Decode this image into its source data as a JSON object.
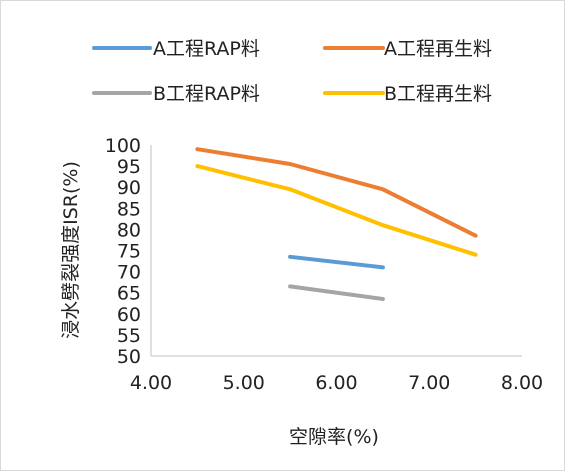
{
  "chart_data": {
    "type": "line",
    "xlabel": "空隙率(%)",
    "ylabel": "浸水劈裂强度ISR(%)",
    "xlim": [
      4.0,
      8.0
    ],
    "ylim": [
      50,
      100
    ],
    "x_ticks": [
      "4.00",
      "5.00",
      "6.00",
      "7.00",
      "8.00"
    ],
    "y_ticks": [
      "50",
      "55",
      "60",
      "65",
      "70",
      "75",
      "80",
      "85",
      "90",
      "95",
      "100"
    ],
    "legend": "top",
    "grid": false,
    "series": [
      {
        "name": "A工程RAP料",
        "color": "#5b9bd5",
        "points": [
          [
            5.5,
            73.5
          ],
          [
            6.5,
            71.0
          ]
        ]
      },
      {
        "name": "A工程再生料",
        "color": "#ed7d31",
        "points": [
          [
            4.5,
            99.0
          ],
          [
            5.5,
            95.5
          ],
          [
            6.5,
            89.5
          ],
          [
            7.5,
            78.5
          ]
        ]
      },
      {
        "name": "B工程RAP料",
        "color": "#a5a5a5",
        "points": [
          [
            5.5,
            66.5
          ],
          [
            6.5,
            63.5
          ]
        ]
      },
      {
        "name": "B工程再生料",
        "color": "#ffc000",
        "points": [
          [
            4.5,
            95.0
          ],
          [
            5.5,
            89.5
          ],
          [
            6.5,
            81.0
          ],
          [
            7.5,
            74.0
          ]
        ]
      }
    ]
  }
}
